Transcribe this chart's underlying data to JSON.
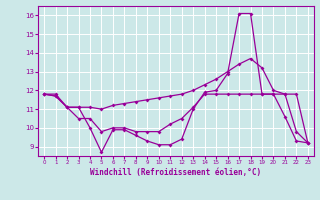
{
  "xlabel": "Windchill (Refroidissement éolien,°C)",
  "bg_color": "#cce8e8",
  "line_color": "#990099",
  "grid_color": "#ffffff",
  "xlim": [
    -0.5,
    23.5
  ],
  "ylim": [
    8.5,
    16.5
  ],
  "yticks": [
    9,
    10,
    11,
    12,
    13,
    14,
    15,
    16
  ],
  "xticks": [
    0,
    1,
    2,
    3,
    4,
    5,
    6,
    7,
    8,
    9,
    10,
    11,
    12,
    13,
    14,
    15,
    16,
    17,
    18,
    19,
    20,
    21,
    22,
    23
  ],
  "line1_x": [
    0,
    1,
    2,
    3,
    4,
    5,
    6,
    7,
    8,
    9,
    10,
    11,
    12,
    13,
    14,
    15,
    16,
    17,
    18,
    19,
    20,
    21,
    22,
    23
  ],
  "line1_y": [
    11.8,
    11.7,
    11.1,
    10.5,
    10.5,
    9.8,
    10.0,
    10.0,
    9.8,
    9.8,
    9.8,
    10.2,
    10.5,
    11.1,
    11.8,
    11.8,
    11.8,
    11.8,
    11.8,
    11.8,
    11.8,
    11.8,
    9.8,
    9.2
  ],
  "line2_x": [
    0,
    1,
    2,
    3,
    4,
    5,
    6,
    7,
    8,
    9,
    10,
    11,
    12,
    13,
    14,
    15,
    16,
    17,
    18,
    19,
    20,
    21,
    22,
    23
  ],
  "line2_y": [
    11.8,
    11.8,
    11.1,
    11.1,
    11.1,
    11.0,
    11.2,
    11.3,
    11.4,
    11.5,
    11.6,
    11.7,
    11.8,
    12.0,
    12.3,
    12.6,
    13.0,
    13.4,
    13.7,
    13.2,
    12.0,
    11.8,
    11.8,
    9.2
  ],
  "line3_x": [
    0,
    1,
    2,
    3,
    4,
    5,
    6,
    7,
    8,
    9,
    10,
    11,
    12,
    13,
    14,
    15,
    16,
    17,
    18,
    19,
    20,
    21,
    22,
    23
  ],
  "line3_y": [
    11.8,
    11.7,
    11.1,
    11.1,
    10.0,
    8.7,
    9.9,
    9.9,
    9.6,
    9.3,
    9.1,
    9.1,
    9.4,
    11.0,
    11.9,
    12.0,
    12.9,
    16.1,
    16.1,
    11.8,
    11.8,
    10.6,
    9.3,
    9.2
  ]
}
